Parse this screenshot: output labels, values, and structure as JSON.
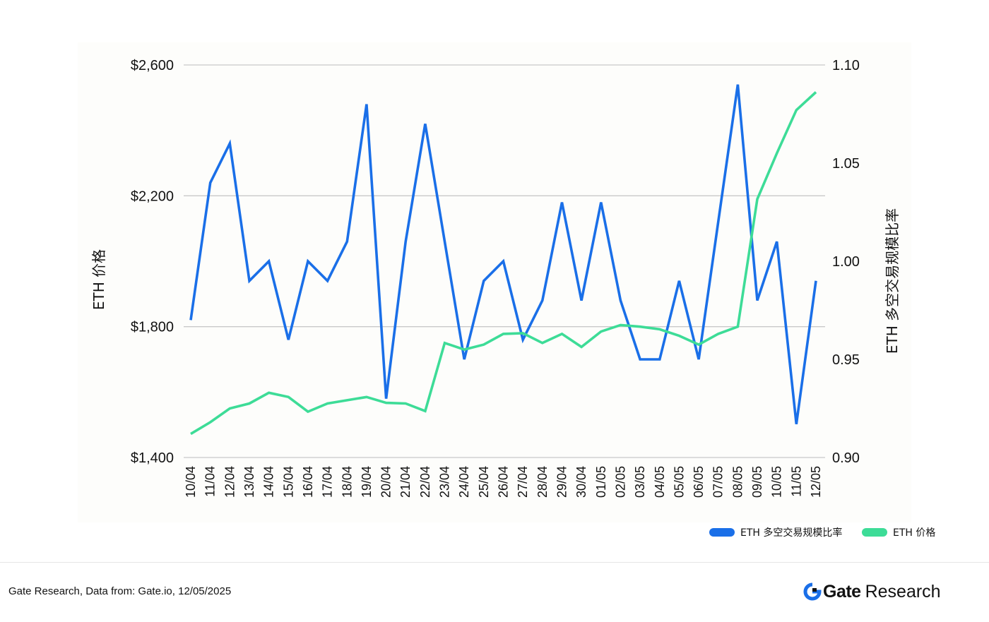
{
  "chart_data": {
    "type": "line",
    "title": "",
    "categories": [
      "10/04",
      "11/04",
      "12/04",
      "13/04",
      "14/04",
      "15/04",
      "16/04",
      "17/04",
      "18/04",
      "19/04",
      "20/04",
      "21/04",
      "22/04",
      "23/04",
      "24/04",
      "25/04",
      "26/04",
      "27/04",
      "28/04",
      "29/04",
      "30/04",
      "01/05",
      "02/05",
      "03/05",
      "04/05",
      "05/05",
      "06/05",
      "07/05",
      "08/05",
      "09/05",
      "10/05",
      "11/05",
      "12/05"
    ],
    "left_axis": {
      "label": "ETH 价格",
      "range": [
        1400,
        2600
      ],
      "ticks": [
        1400,
        1800,
        2200,
        2600
      ],
      "tick_labels": [
        "$1,400",
        "$1,800",
        "$2,200",
        "$2,600"
      ]
    },
    "right_axis": {
      "label": "ETH 多空交易规模比率",
      "range": [
        0.9,
        1.1
      ],
      "ticks": [
        0.9,
        0.95,
        1.0,
        1.05,
        1.1
      ],
      "tick_labels": [
        "0.90",
        "0.95",
        "1.00",
        "1.05",
        "1.10"
      ]
    },
    "series": [
      {
        "name": "ETH 多空交易规模比率",
        "axis": "right",
        "color": "#1a6fe8",
        "values": [
          0.97,
          1.04,
          1.06,
          0.99,
          1.0,
          0.96,
          1.0,
          0.99,
          1.01,
          1.08,
          0.93,
          1.01,
          1.07,
          1.01,
          0.95,
          0.99,
          1.0,
          0.96,
          0.98,
          1.03,
          0.98,
          1.03,
          0.98,
          0.95,
          0.95,
          0.99,
          0.95,
          1.02,
          1.09,
          0.98,
          1.01,
          0.917,
          0.99
        ]
      },
      {
        "name": "ETH 价格",
        "axis": "left",
        "color": "#3ddc97",
        "values": [
          1472,
          1508,
          1550,
          1565,
          1598,
          1585,
          1540,
          1565,
          1575,
          1585,
          1567,
          1565,
          1542,
          1750,
          1730,
          1745,
          1778,
          1780,
          1750,
          1778,
          1738,
          1785,
          1805,
          1800,
          1792,
          1772,
          1745,
          1778,
          1800,
          2190,
          2330,
          2462,
          2517
        ]
      }
    ],
    "legend": {
      "position": "bottom-right"
    }
  },
  "footer": {
    "source": "Gate Research, Data from: Gate.io, 12/05/2025",
    "brand_gate": "Gate",
    "brand_research": "Research"
  },
  "colors": {
    "ratio_line": "#1a6fe8",
    "price_line": "#3ddc97",
    "brand_accent": "#1a6fe8"
  }
}
